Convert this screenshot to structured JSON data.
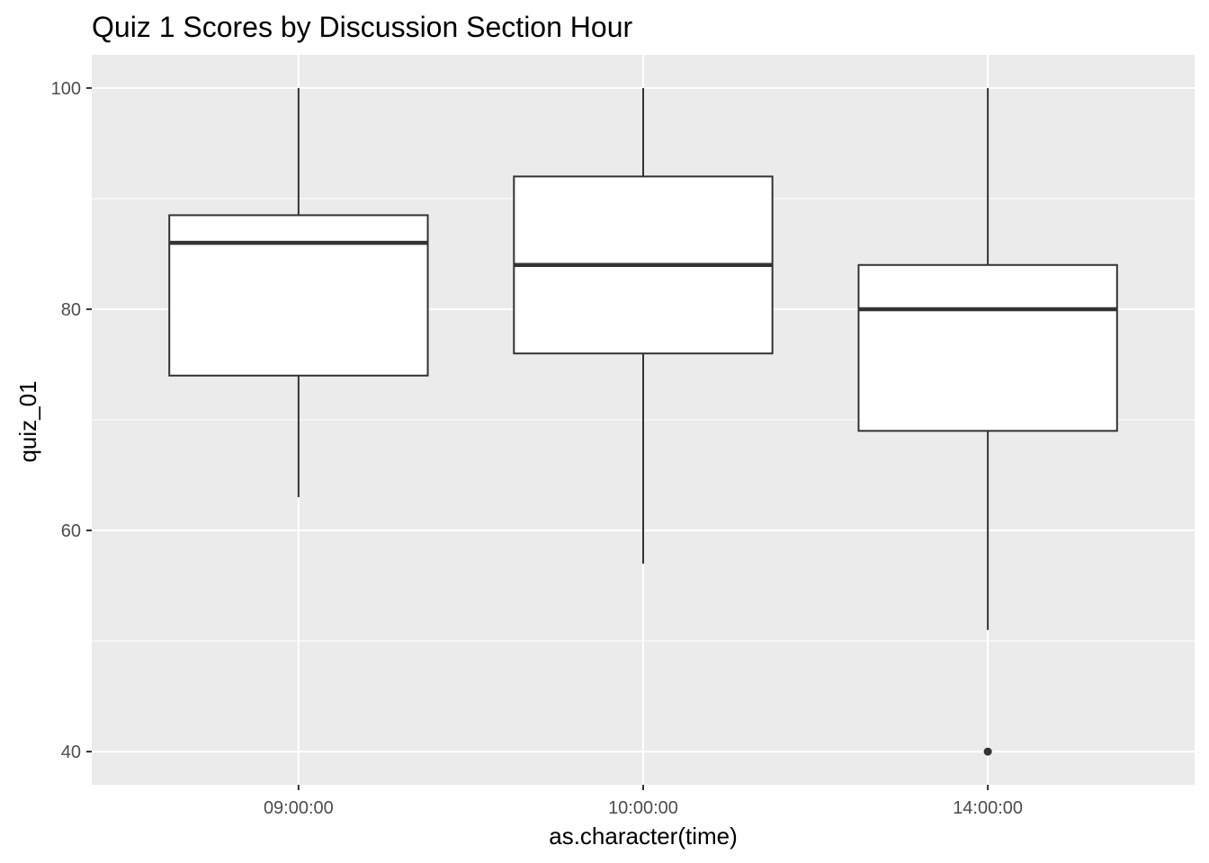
{
  "chart_data": {
    "type": "box",
    "title": "Quiz 1 Scores by Discussion Section Hour",
    "xlabel": "as.character(time)",
    "ylabel": "quiz_01",
    "ylim": [
      37,
      103
    ],
    "y_ticks": [
      40,
      60,
      80,
      100
    ],
    "y_minor_ticks": [
      50,
      70,
      90
    ],
    "grid": true,
    "categories": [
      "09:00:00",
      "10:00:00",
      "14:00:00"
    ],
    "boxes": [
      {
        "category": "09:00:00",
        "min": 63,
        "q1": 74,
        "median": 86,
        "q3": 88.5,
        "max": 100,
        "outliers": []
      },
      {
        "category": "10:00:00",
        "min": 57,
        "q1": 76,
        "median": 84,
        "q3": 92,
        "max": 100,
        "outliers": []
      },
      {
        "category": "14:00:00",
        "min": 51,
        "q1": 69,
        "median": 80,
        "q3": 84,
        "max": 100,
        "outliers": [
          40
        ]
      }
    ],
    "colors": {
      "panel_background": "#ebebeb",
      "grid": "#ffffff",
      "box_fill": "#ffffff",
      "box_line": "#333333",
      "tick_text": "#4d4d4d"
    }
  }
}
